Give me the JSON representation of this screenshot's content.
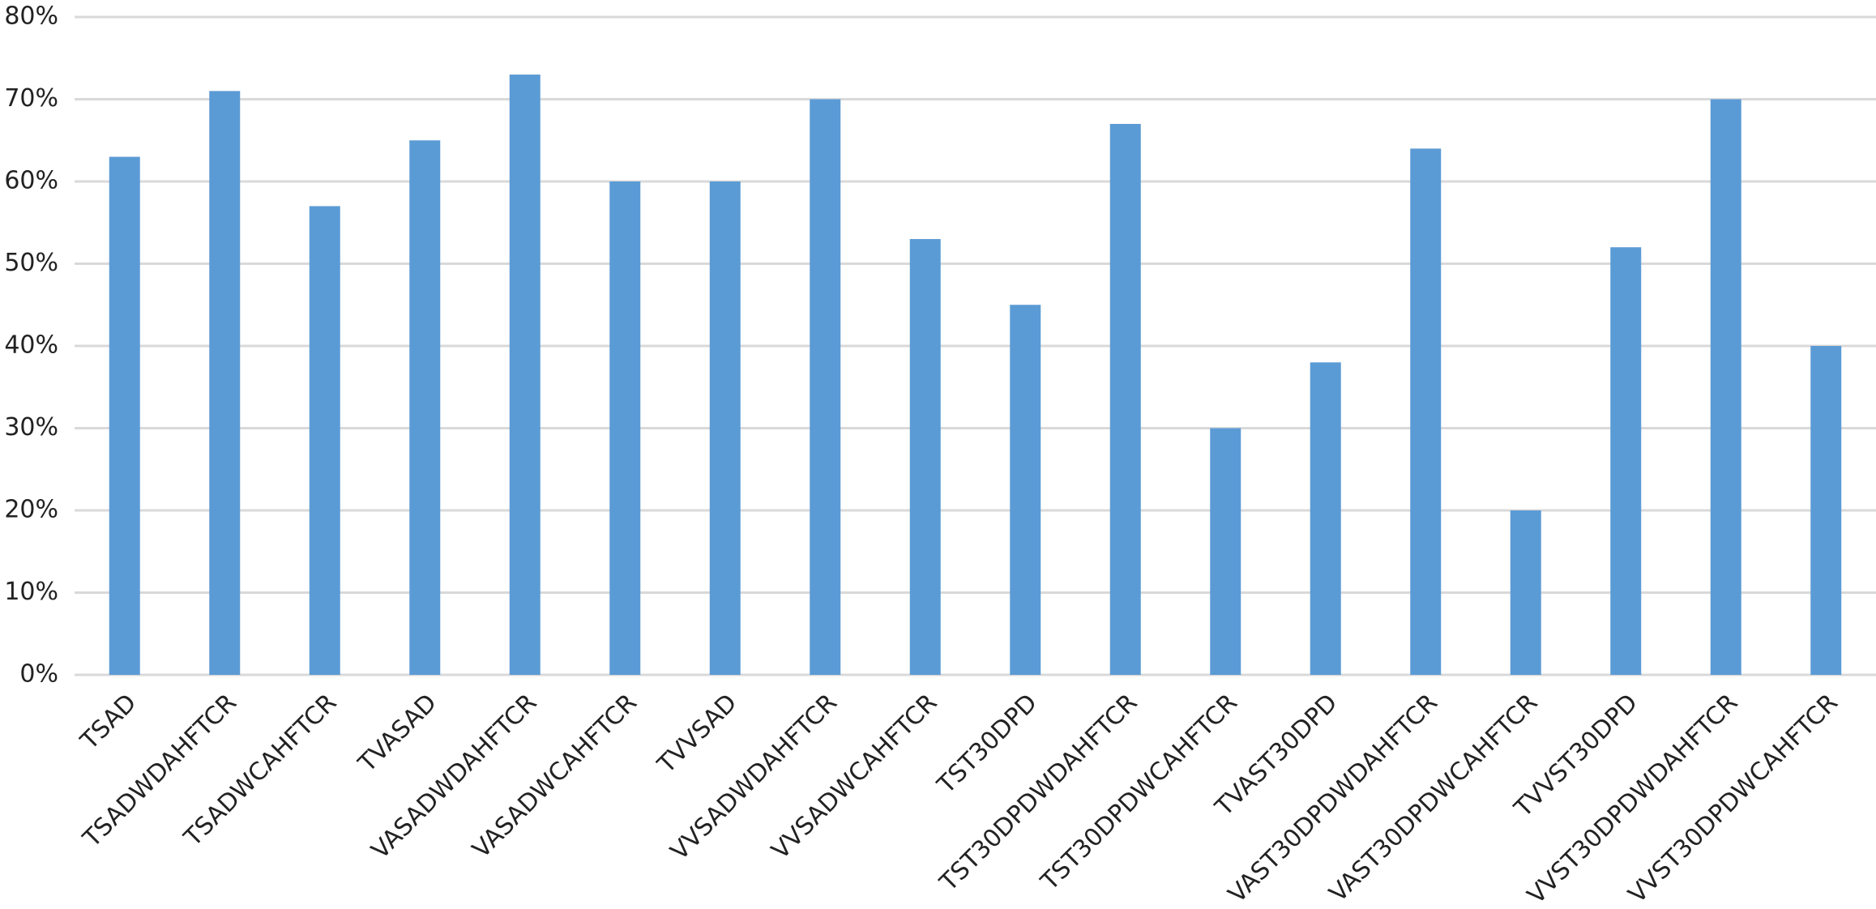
{
  "chart_data": {
    "type": "bar",
    "categories": [
      "TSAD",
      "TSADWDAHFTCR",
      "TSADWCAHFTCR",
      "TVASAD",
      "VASADWDAHFTCR",
      "VASADWCAHFTCR",
      "TVVSAD",
      "VVSADWDAHFTCR",
      "VVSADWCAHFTCR",
      "TST30DPD",
      "TST30DPDWDAHFTCR",
      "TST30DPDWCAHFTCR",
      "TVAST30DPD",
      "VAST30DPDWDAHFTCR",
      "VAST30DPDWCAHFTCR",
      "TVVST30DPD",
      "VVST30DPDWDAHFTCR",
      "VVST30DPDWCAHFTCR"
    ],
    "values": [
      63,
      71,
      57,
      65,
      73,
      60,
      60,
      70,
      53,
      45,
      67,
      30,
      38,
      64,
      20,
      52,
      70,
      40
    ],
    "color": "#5b9bd5",
    "ylim": [
      0,
      80
    ],
    "yticks": [
      {
        "value": 0,
        "label": "0%"
      },
      {
        "value": 10,
        "label": "10%"
      },
      {
        "value": 20,
        "label": "20%"
      },
      {
        "value": 30,
        "label": "30%"
      },
      {
        "value": 40,
        "label": "40%"
      },
      {
        "value": 50,
        "label": "50%"
      },
      {
        "value": 60,
        "label": "60%"
      },
      {
        "value": 70,
        "label": "70%"
      },
      {
        "value": 80,
        "label": "80%"
      }
    ],
    "grid": true
  }
}
